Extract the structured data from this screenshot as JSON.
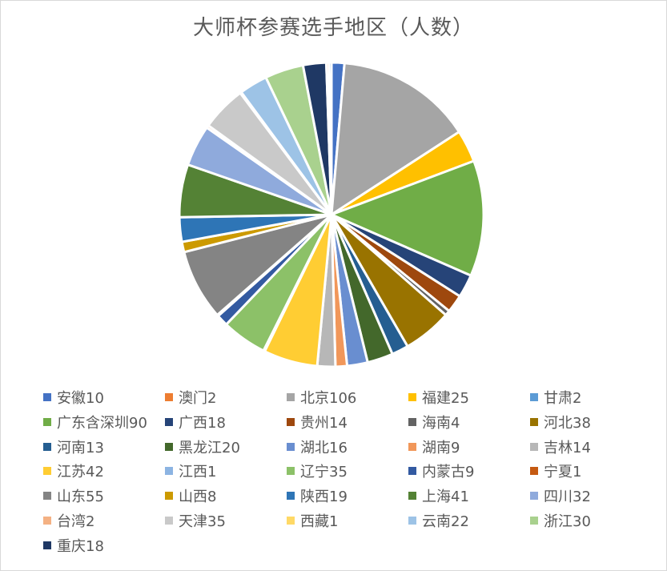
{
  "chart_data": {
    "type": "pie",
    "title": "大师杯参赛选手地区（人数）",
    "series": [
      {
        "name": "安徽",
        "label": "安徽10",
        "value": 10,
        "color": "#4472c4"
      },
      {
        "name": "北京",
        "label": "北京106",
        "value": 106,
        "color": "#a5a5a5"
      },
      {
        "name": "福建",
        "label": "福建25",
        "value": 25,
        "color": "#ffc000"
      },
      {
        "name": "广东含深圳",
        "label": "广东含深圳90",
        "value": 90,
        "color": "#70ad47"
      },
      {
        "name": "广西",
        "label": "广西18",
        "value": 18,
        "color": "#264478"
      },
      {
        "name": "贵州",
        "label": "贵州14",
        "value": 14,
        "color": "#9e480e"
      },
      {
        "name": "海南",
        "label": "海南4",
        "value": 4,
        "color": "#636363"
      },
      {
        "name": "河北",
        "label": "河北38",
        "value": 38,
        "color": "#997300"
      },
      {
        "name": "河南",
        "label": "河南13",
        "value": 13,
        "color": "#255e91"
      },
      {
        "name": "黑龙江",
        "label": "黑龙江20",
        "value": 20,
        "color": "#43682b"
      },
      {
        "name": "湖北",
        "label": "湖北16",
        "value": 16,
        "color": "#698ed0"
      },
      {
        "name": "湖南",
        "label": "湖南9",
        "value": 9,
        "color": "#f1975a"
      },
      {
        "name": "吉林",
        "label": "吉林14",
        "value": 14,
        "color": "#b7b7b7"
      },
      {
        "name": "江苏",
        "label": "江苏42",
        "value": 42,
        "color": "#ffcd33"
      },
      {
        "name": "江西",
        "label": "江西1",
        "value": 1,
        "color": "#8cb4e2"
      },
      {
        "name": "辽宁",
        "label": "辽宁35",
        "value": 35,
        "color": "#8cc168"
      },
      {
        "name": "内蒙古",
        "label": "内蒙古9",
        "value": 9,
        "color": "#335aa1"
      },
      {
        "name": "宁夏",
        "label": "宁夏1",
        "value": 1,
        "color": "#c55a11"
      },
      {
        "name": "山东",
        "label": "山东55",
        "value": 55,
        "color": "#848484"
      },
      {
        "name": "山西",
        "label": "山西8",
        "value": 8,
        "color": "#cc9a00"
      },
      {
        "name": "陕西",
        "label": "陕西19",
        "value": 19,
        "color": "#2e75b6"
      },
      {
        "name": "上海",
        "label": "上海41",
        "value": 41,
        "color": "#548235"
      },
      {
        "name": "四川",
        "label": "四川32",
        "value": 32,
        "color": "#8faadc"
      },
      {
        "name": "台湾",
        "label": "台湾2",
        "value": 2,
        "color": "#f4b183"
      },
      {
        "name": "天津",
        "label": "天津35",
        "value": 35,
        "color": "#c9c9c9"
      },
      {
        "name": "西藏",
        "label": "西藏1",
        "value": 1,
        "color": "#ffd966"
      },
      {
        "name": "云南",
        "label": "云南22",
        "value": 22,
        "color": "#9dc3e6"
      },
      {
        "name": "浙江",
        "label": "浙江30",
        "value": 30,
        "color": "#a9d18e"
      },
      {
        "name": "重庆",
        "label": "重庆18",
        "value": 18,
        "color": "#1f3864"
      },
      {
        "name": "澳门",
        "label": "澳门2",
        "value": 2,
        "color": "#ed7d31"
      },
      {
        "name": "甘肃",
        "label": "甘肃2",
        "value": 2,
        "color": "#5b9bd5"
      }
    ],
    "legend": {
      "position": "bottom",
      "order": [
        "安徽",
        "澳门",
        "北京",
        "福建",
        "甘肃",
        "广东含深圳",
        "广西",
        "贵州",
        "海南",
        "河北",
        "河南",
        "黑龙江",
        "湖北",
        "湖南",
        "吉林",
        "江苏",
        "江西",
        "辽宁",
        "内蒙古",
        "宁夏",
        "山东",
        "山西",
        "陕西",
        "上海",
        "四川",
        "台湾",
        "天津",
        "西藏",
        "云南",
        "浙江",
        "重庆"
      ]
    },
    "slice_border": "white"
  }
}
